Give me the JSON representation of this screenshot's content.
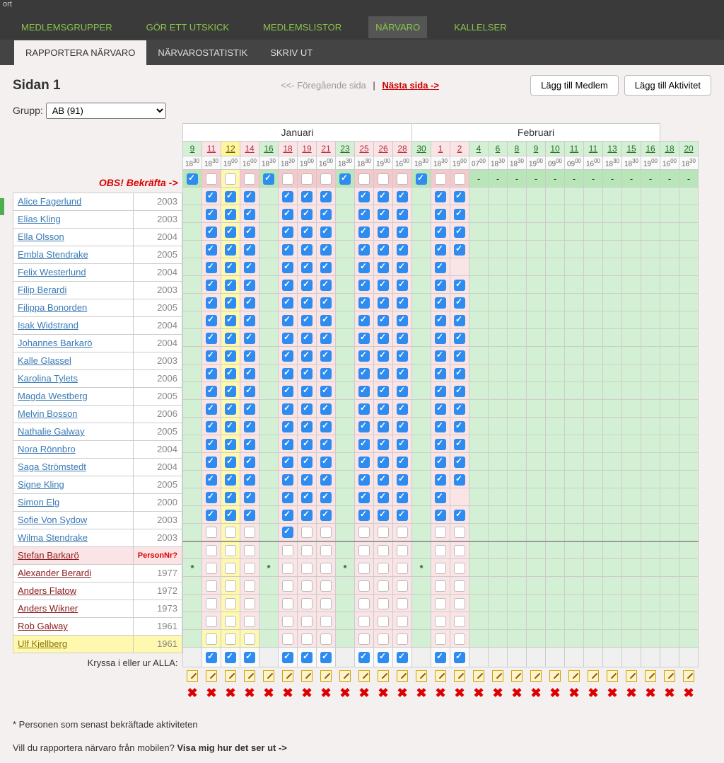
{
  "topbar_text": "ort",
  "mainnav": [
    {
      "label": "MEDLEMSGRUPPER",
      "active": false
    },
    {
      "label": "GÖR ETT UTSKICK",
      "active": false
    },
    {
      "label": "MEDLEMSLISTOR",
      "active": false
    },
    {
      "label": "NÄRVARO",
      "active": true
    },
    {
      "label": "KALLELSER",
      "active": false
    }
  ],
  "subnav": [
    {
      "label": "RAPPORTERA NÄRVARO",
      "active": true
    },
    {
      "label": "NÄRVAROSTATISTIK",
      "active": false
    },
    {
      "label": "SKRIV UT",
      "active": false
    }
  ],
  "page_title": "Sidan 1",
  "pager_prev": "<<- Föregående sida",
  "pager_sep": "|",
  "pager_next": "Nästa sida ->",
  "btn_add_member": "Lägg till Medlem",
  "btn_add_activity": "Lägg till Aktivitet",
  "group_label": "Grupp:",
  "group_value": "AB (91)",
  "confirm_label": "OBS! Bekräfta ->",
  "months": [
    "Januari",
    "Februari"
  ],
  "month_spans": [
    12,
    13
  ],
  "columns": [
    {
      "day": "9",
      "bg": "g",
      "time_h": "18",
      "time_m": "30"
    },
    {
      "day": "11",
      "bg": "p",
      "time_h": "18",
      "time_m": "30"
    },
    {
      "day": "12",
      "bg": "y",
      "time_h": "19",
      "time_m": "00"
    },
    {
      "day": "14",
      "bg": "p",
      "time_h": "16",
      "time_m": "00"
    },
    {
      "day": "16",
      "bg": "g",
      "time_h": "18",
      "time_m": "30"
    },
    {
      "day": "18",
      "bg": "p",
      "time_h": "18",
      "time_m": "30"
    },
    {
      "day": "19",
      "bg": "p",
      "time_h": "19",
      "time_m": "00"
    },
    {
      "day": "21",
      "bg": "p",
      "time_h": "16",
      "time_m": "00"
    },
    {
      "day": "23",
      "bg": "g",
      "time_h": "18",
      "time_m": "30"
    },
    {
      "day": "25",
      "bg": "p",
      "time_h": "18",
      "time_m": "30"
    },
    {
      "day": "26",
      "bg": "p",
      "time_h": "19",
      "time_m": "00"
    },
    {
      "day": "28",
      "bg": "p",
      "time_h": "16",
      "time_m": "00"
    },
    {
      "day": "30",
      "bg": "g",
      "time_h": "18",
      "time_m": "30"
    },
    {
      "day": "1",
      "bg": "p",
      "time_h": "18",
      "time_m": "30"
    },
    {
      "day": "2",
      "bg": "p",
      "time_h": "19",
      "time_m": "00"
    },
    {
      "day": "4",
      "bg": "g",
      "time_h": "07",
      "time_m": "00"
    },
    {
      "day": "6",
      "bg": "g",
      "time_h": "18",
      "time_m": "30"
    },
    {
      "day": "8",
      "bg": "g",
      "time_h": "18",
      "time_m": "30"
    },
    {
      "day": "9",
      "bg": "g",
      "time_h": "19",
      "time_m": "00"
    },
    {
      "day": "10",
      "bg": "g",
      "time_h": "09",
      "time_m": "00"
    },
    {
      "day": "11",
      "bg": "g",
      "time_h": "09",
      "time_m": "00"
    },
    {
      "day": "11",
      "bg": "g",
      "time_h": "16",
      "time_m": "00"
    },
    {
      "day": "13",
      "bg": "g",
      "time_h": "18",
      "time_m": "30"
    },
    {
      "day": "15",
      "bg": "g",
      "time_h": "18",
      "time_m": "30"
    },
    {
      "day": "16",
      "bg": "g",
      "time_h": "19",
      "time_m": "00"
    },
    {
      "day": "18",
      "bg": "g",
      "time_h": "16",
      "time_m": "00"
    },
    {
      "day": "20",
      "bg": "g",
      "time_h": "18",
      "time_m": "30"
    }
  ],
  "confirm_row": [
    "on",
    "off",
    "off",
    "off",
    "on",
    "off",
    "off",
    "off",
    "on",
    "off",
    "off",
    "off",
    "on",
    "off",
    "off",
    "-",
    "-",
    "-",
    "-",
    "-",
    "-",
    "-",
    "-",
    "-",
    "-",
    "-",
    "-"
  ],
  "members": [
    {
      "name": "Alice Fagerlund",
      "year": "2003",
      "leader": false,
      "warn": false,
      "hl": false,
      "cells": [
        "",
        "on",
        "on",
        "on",
        "",
        "on",
        "on",
        "on",
        "",
        "on",
        "on",
        "on",
        "",
        "on",
        "on",
        "",
        "",
        "",
        "",
        "",
        "",
        "",
        "",
        "",
        "",
        "",
        ""
      ]
    },
    {
      "name": "Elias Kling",
      "year": "2003",
      "leader": false,
      "warn": false,
      "hl": false,
      "cells": [
        "",
        "on",
        "on",
        "on",
        "",
        "on",
        "on",
        "on",
        "",
        "on",
        "on",
        "on",
        "",
        "on",
        "on",
        "",
        "",
        "",
        "",
        "",
        "",
        "",
        "",
        "",
        "",
        "",
        ""
      ]
    },
    {
      "name": "Ella Olsson",
      "year": "2004",
      "leader": false,
      "warn": false,
      "hl": false,
      "cells": [
        "",
        "on",
        "on",
        "on",
        "",
        "on",
        "on",
        "on",
        "",
        "on",
        "on",
        "on",
        "",
        "on",
        "on",
        "",
        "",
        "",
        "",
        "",
        "",
        "",
        "",
        "",
        "",
        "",
        ""
      ]
    },
    {
      "name": "Embla Stendrake",
      "year": "2005",
      "leader": false,
      "warn": false,
      "hl": false,
      "cells": [
        "",
        "on",
        "on",
        "on",
        "",
        "on",
        "on",
        "on",
        "",
        "on",
        "on",
        "on",
        "",
        "on",
        "on",
        "",
        "",
        "",
        "",
        "",
        "",
        "",
        "",
        "",
        "",
        "",
        ""
      ]
    },
    {
      "name": "Felix Westerlund",
      "year": "2004",
      "leader": false,
      "warn": false,
      "hl": false,
      "cells": [
        "",
        "on",
        "on",
        "on",
        "",
        "on",
        "on",
        "on",
        "",
        "on",
        "on",
        "on",
        "",
        "on",
        "",
        "",
        "",
        "",
        "",
        "",
        "",
        "",
        "",
        "",
        "",
        "",
        ""
      ]
    },
    {
      "name": "Filip Berardi",
      "year": "2003",
      "leader": false,
      "warn": false,
      "hl": false,
      "cells": [
        "",
        "on",
        "on",
        "on",
        "",
        "on",
        "on",
        "on",
        "",
        "on",
        "on",
        "on",
        "",
        "on",
        "on",
        "",
        "",
        "",
        "",
        "",
        "",
        "",
        "",
        "",
        "",
        "",
        ""
      ]
    },
    {
      "name": "Filippa Bonorden",
      "year": "2005",
      "leader": false,
      "warn": false,
      "hl": false,
      "cells": [
        "",
        "on",
        "on",
        "on",
        "",
        "on",
        "on",
        "on",
        "",
        "on",
        "on",
        "on",
        "",
        "on",
        "on",
        "",
        "",
        "",
        "",
        "",
        "",
        "",
        "",
        "",
        "",
        "",
        ""
      ]
    },
    {
      "name": "Isak Widstrand",
      "year": "2004",
      "leader": false,
      "warn": false,
      "hl": false,
      "cells": [
        "",
        "on",
        "on",
        "on",
        "",
        "on",
        "on",
        "on",
        "",
        "on",
        "on",
        "on",
        "",
        "on",
        "on",
        "",
        "",
        "",
        "",
        "",
        "",
        "",
        "",
        "",
        "",
        "",
        ""
      ]
    },
    {
      "name": "Johannes Barkarö",
      "year": "2004",
      "leader": false,
      "warn": false,
      "hl": false,
      "cells": [
        "",
        "on",
        "on",
        "on",
        "",
        "on",
        "on",
        "on",
        "",
        "on",
        "on",
        "on",
        "",
        "on",
        "on",
        "",
        "",
        "",
        "",
        "",
        "",
        "",
        "",
        "",
        "",
        "",
        ""
      ]
    },
    {
      "name": "Kalle Glassel",
      "year": "2003",
      "leader": false,
      "warn": false,
      "hl": false,
      "cells": [
        "",
        "on",
        "on",
        "on",
        "",
        "on",
        "on",
        "on",
        "",
        "on",
        "on",
        "on",
        "",
        "on",
        "on",
        "",
        "",
        "",
        "",
        "",
        "",
        "",
        "",
        "",
        "",
        "",
        ""
      ]
    },
    {
      "name": "Karolina Tylets",
      "year": "2006",
      "leader": false,
      "warn": false,
      "hl": false,
      "cells": [
        "",
        "on",
        "on",
        "on",
        "",
        "on",
        "on",
        "on",
        "",
        "on",
        "on",
        "on",
        "",
        "on",
        "on",
        "",
        "",
        "",
        "",
        "",
        "",
        "",
        "",
        "",
        "",
        "",
        ""
      ]
    },
    {
      "name": "Magda Westberg",
      "year": "2005",
      "leader": false,
      "warn": false,
      "hl": false,
      "cells": [
        "",
        "on",
        "on",
        "on",
        "",
        "on",
        "on",
        "on",
        "",
        "on",
        "on",
        "on",
        "",
        "on",
        "on",
        "",
        "",
        "",
        "",
        "",
        "",
        "",
        "",
        "",
        "",
        "",
        ""
      ]
    },
    {
      "name": "Melvin Bosson",
      "year": "2006",
      "leader": false,
      "warn": false,
      "hl": false,
      "cells": [
        "",
        "on",
        "on",
        "on",
        "",
        "on",
        "on",
        "on",
        "",
        "on",
        "on",
        "on",
        "",
        "on",
        "on",
        "",
        "",
        "",
        "",
        "",
        "",
        "",
        "",
        "",
        "",
        "",
        ""
      ]
    },
    {
      "name": "Nathalie Galway",
      "year": "2005",
      "leader": false,
      "warn": false,
      "hl": false,
      "cells": [
        "",
        "on",
        "on",
        "on",
        "",
        "on",
        "on",
        "on",
        "",
        "on",
        "on",
        "on",
        "",
        "on",
        "on",
        "",
        "",
        "",
        "",
        "",
        "",
        "",
        "",
        "",
        "",
        "",
        ""
      ]
    },
    {
      "name": "Nora Rönnbro",
      "year": "2004",
      "leader": false,
      "warn": false,
      "hl": false,
      "cells": [
        "",
        "on",
        "on",
        "on",
        "",
        "on",
        "on",
        "on",
        "",
        "on",
        "on",
        "on",
        "",
        "on",
        "on",
        "",
        "",
        "",
        "",
        "",
        "",
        "",
        "",
        "",
        "",
        "",
        ""
      ]
    },
    {
      "name": "Saga Strömstedt",
      "year": "2004",
      "leader": false,
      "warn": false,
      "hl": false,
      "cells": [
        "",
        "on",
        "on",
        "on",
        "",
        "on",
        "on",
        "on",
        "",
        "on",
        "on",
        "on",
        "",
        "on",
        "on",
        "",
        "",
        "",
        "",
        "",
        "",
        "",
        "",
        "",
        "",
        "",
        ""
      ]
    },
    {
      "name": "Signe Kling",
      "year": "2005",
      "leader": false,
      "warn": false,
      "hl": false,
      "cells": [
        "",
        "on",
        "on",
        "on",
        "",
        "on",
        "on",
        "on",
        "",
        "on",
        "on",
        "on",
        "",
        "on",
        "on",
        "",
        "",
        "",
        "",
        "",
        "",
        "",
        "",
        "",
        "",
        "",
        ""
      ]
    },
    {
      "name": "Simon Elg",
      "year": "2000",
      "leader": false,
      "warn": false,
      "hl": false,
      "cells": [
        "",
        "on",
        "on",
        "on",
        "",
        "on",
        "on",
        "on",
        "",
        "on",
        "on",
        "on",
        "",
        "on",
        "",
        "",
        "",
        "",
        "",
        "",
        "",
        "",
        "",
        "",
        "",
        "",
        ""
      ]
    },
    {
      "name": "Sofie Von Sydow",
      "year": "2003",
      "leader": false,
      "warn": false,
      "hl": false,
      "cells": [
        "",
        "on",
        "on",
        "on",
        "",
        "on",
        "on",
        "on",
        "",
        "on",
        "on",
        "on",
        "",
        "on",
        "on",
        "",
        "",
        "",
        "",
        "",
        "",
        "",
        "",
        "",
        "",
        "",
        ""
      ]
    },
    {
      "name": "Wilma Stendrake",
      "year": "2003",
      "leader": false,
      "warn": false,
      "hl": false,
      "cells": [
        "",
        "off",
        "off",
        "off",
        "",
        "on",
        "off",
        "off",
        "",
        "off",
        "off",
        "off",
        "",
        "off",
        "off",
        "",
        "",
        "",
        "",
        "",
        "",
        "",
        "",
        "",
        "",
        "",
        ""
      ]
    },
    {
      "name": "Stefan Barkarö",
      "year": "PersonNr?",
      "leader": true,
      "warn": true,
      "hl": false,
      "sep": true,
      "cells": [
        "",
        "off",
        "off",
        "off",
        "",
        "off",
        "off",
        "off",
        "",
        "off",
        "off",
        "off",
        "",
        "off",
        "off",
        "",
        "",
        "",
        "",
        "",
        "",
        "",
        "",
        "",
        "",
        "",
        ""
      ]
    },
    {
      "name": "Alexander Berardi",
      "year": "1977",
      "leader": true,
      "warn": false,
      "hl": false,
      "cells": [
        "*",
        "off",
        "off",
        "off",
        "*",
        "off",
        "off",
        "off",
        "*",
        "off",
        "off",
        "off",
        "*",
        "off",
        "off",
        "",
        "",
        "",
        "",
        "",
        "",
        "",
        "",
        "",
        "",
        "",
        ""
      ]
    },
    {
      "name": "Anders Flatow",
      "year": "1972",
      "leader": true,
      "warn": false,
      "hl": false,
      "cells": [
        "",
        "off",
        "off",
        "off",
        "",
        "off",
        "off",
        "off",
        "",
        "off",
        "off",
        "off",
        "",
        "off",
        "off",
        "",
        "",
        "",
        "",
        "",
        "",
        "",
        "",
        "",
        "",
        "",
        ""
      ]
    },
    {
      "name": "Anders Wikner",
      "year": "1973",
      "leader": true,
      "warn": false,
      "hl": false,
      "cells": [
        "",
        "off",
        "off",
        "off",
        "",
        "off",
        "off",
        "off",
        "",
        "off",
        "off",
        "off",
        "",
        "off",
        "off",
        "",
        "",
        "",
        "",
        "",
        "",
        "",
        "",
        "",
        "",
        "",
        ""
      ]
    },
    {
      "name": "Rob Galway",
      "year": "1961",
      "leader": true,
      "warn": false,
      "hl": false,
      "cells": [
        "",
        "off",
        "off",
        "off",
        "",
        "off",
        "off",
        "off",
        "",
        "off",
        "off",
        "off",
        "",
        "off",
        "off",
        "",
        "",
        "",
        "",
        "",
        "",
        "",
        "",
        "",
        "",
        "",
        ""
      ]
    },
    {
      "name": "Ulf Kjellberg",
      "year": "1961",
      "leader": true,
      "warn": false,
      "hl": true,
      "cells": [
        "",
        "off",
        "off",
        "off",
        "",
        "off",
        "off",
        "off",
        "",
        "off",
        "off",
        "off",
        "",
        "off",
        "off",
        "",
        "",
        "",
        "",
        "",
        "",
        "",
        "",
        "",
        "",
        "",
        ""
      ]
    }
  ],
  "all_label": "Kryssa i eller ur ALLA:",
  "all_row": [
    "",
    "on",
    "on",
    "on",
    "",
    "on",
    "on",
    "on",
    "",
    "on",
    "on",
    "on",
    "",
    "on",
    "on",
    "",
    "",
    "",
    "",
    "",
    "",
    "",
    "",
    "",
    "",
    "",
    ""
  ],
  "footnote": "* Personen som senast bekräftade aktiviteten",
  "mobile_q": "Vill du rapportera närvaro från mobilen? ",
  "mobile_link": "Visa mig hur det ser ut ->",
  "colors": {
    "green_bg": "#d4f0d4",
    "pink_bg": "#fbe4e6",
    "yellow_bg": "#fff59d",
    "check_blue": "#2e8bef",
    "leader_link": "#8b1a1a",
    "member_link": "#3a7ab5",
    "confirm_red": "#d00"
  }
}
